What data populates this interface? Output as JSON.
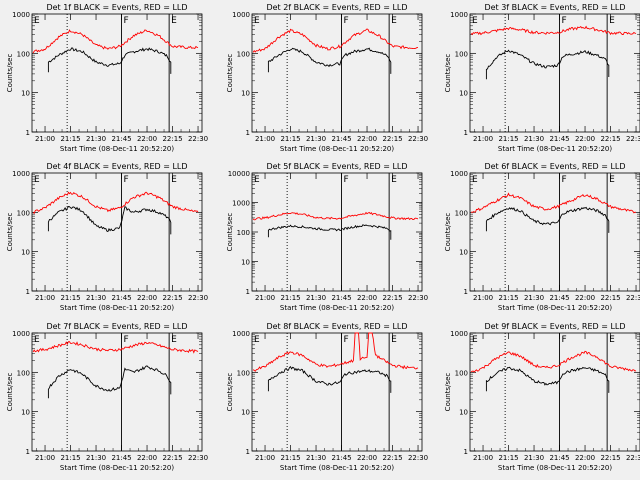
{
  "shared": {
    "ylabel": "Counts/sec",
    "xlabel": "Start Time (08-Dec-11 20:52:20)",
    "x_tick_labels": [
      "21:00",
      "21:15",
      "21:30",
      "21:45",
      "22:00",
      "22:15",
      "22:30"
    ],
    "y_tick_labels": [
      "1",
      "10",
      "100",
      "1000"
    ],
    "marker_labels": [
      "E",
      "F",
      "E"
    ],
    "colors": {
      "events": "#000000",
      "lld": "#ff0000",
      "background": "#f0f0f0"
    }
  },
  "chart_data": [
    {
      "type": "line",
      "title": "Det 1f BLACK = Events, RED = LLD",
      "ylim": [
        1,
        1000
      ],
      "y_scale": "log",
      "xlim": [
        "20:52:20",
        "22:32:20"
      ],
      "marker_times": [
        "21:13",
        "21:45",
        "22:13"
      ],
      "dotted_time": "21:13",
      "series": [
        {
          "name": "Events",
          "x": [
            "21:02",
            "21:08",
            "21:15",
            "21:22",
            "21:30",
            "21:37",
            "21:44",
            "21:47",
            "21:52",
            "22:00",
            "22:07",
            "22:12",
            "22:14"
          ],
          "values": [
            60,
            90,
            130,
            110,
            60,
            50,
            55,
            90,
            110,
            130,
            110,
            85,
            60
          ]
        },
        {
          "name": "LLD",
          "x": [
            "20:53",
            "21:00",
            "21:08",
            "21:15",
            "21:22",
            "21:30",
            "21:37",
            "21:44",
            "21:52",
            "22:00",
            "22:07",
            "22:15",
            "22:25",
            "22:30"
          ],
          "values": [
            110,
            130,
            260,
            380,
            300,
            160,
            130,
            150,
            280,
            390,
            280,
            150,
            140,
            140
          ]
        }
      ]
    },
    {
      "type": "line",
      "title": "Det 2f BLACK = Events, RED = LLD",
      "ylim": [
        1,
        1000
      ],
      "y_scale": "log",
      "xlim": [
        "20:52:20",
        "22:32:20"
      ],
      "marker_times": [
        "21:13",
        "21:45",
        "22:13"
      ],
      "dotted_time": "21:13",
      "series": [
        {
          "name": "Events",
          "x": [
            "21:02",
            "21:08",
            "21:15",
            "21:22",
            "21:30",
            "21:37",
            "21:44",
            "21:47",
            "21:52",
            "22:00",
            "22:07",
            "22:12",
            "22:14"
          ],
          "values": [
            60,
            90,
            130,
            110,
            60,
            50,
            55,
            90,
            110,
            130,
            110,
            85,
            60
          ]
        },
        {
          "name": "LLD",
          "x": [
            "20:53",
            "21:00",
            "21:08",
            "21:15",
            "21:22",
            "21:30",
            "21:37",
            "21:44",
            "21:52",
            "22:00",
            "22:07",
            "22:15",
            "22:25",
            "22:30"
          ],
          "values": [
            110,
            130,
            260,
            380,
            300,
            160,
            130,
            150,
            280,
            390,
            280,
            150,
            140,
            140
          ]
        }
      ]
    },
    {
      "type": "line",
      "title": "Det 3f BLACK = Events, RED = LLD",
      "ylim": [
        1,
        1000
      ],
      "y_scale": "log",
      "xlim": [
        "20:52:20",
        "22:32:20"
      ],
      "marker_times": [
        "21:13",
        "21:45",
        "22:13"
      ],
      "dotted_time": "21:13",
      "series": [
        {
          "name": "Events",
          "x": [
            "21:02",
            "21:08",
            "21:15",
            "21:22",
            "21:30",
            "21:37",
            "21:44",
            "21:47",
            "21:52",
            "22:00",
            "22:07",
            "22:12",
            "22:14"
          ],
          "values": [
            40,
            80,
            120,
            90,
            55,
            45,
            50,
            85,
            95,
            110,
            90,
            70,
            50
          ]
        },
        {
          "name": "LLD",
          "x": [
            "20:53",
            "21:00",
            "21:08",
            "21:15",
            "21:22",
            "21:30",
            "21:37",
            "21:44",
            "21:52",
            "22:00",
            "22:07",
            "22:15",
            "22:25",
            "22:30"
          ],
          "values": [
            310,
            330,
            380,
            430,
            400,
            340,
            330,
            340,
            420,
            460,
            400,
            330,
            320,
            320
          ]
        }
      ]
    },
    {
      "type": "line",
      "title": "Det 4f BLACK = Events, RED = LLD",
      "ylim": [
        1,
        1000
      ],
      "y_scale": "log",
      "xlim": [
        "20:52:20",
        "22:32:20"
      ],
      "marker_times": [
        "21:13",
        "21:45",
        "22:13"
      ],
      "dotted_time": "21:13",
      "series": [
        {
          "name": "Events",
          "x": [
            "21:02",
            "21:08",
            "21:15",
            "21:22",
            "21:30",
            "21:37",
            "21:44",
            "21:47",
            "21:52",
            "22:00",
            "22:07",
            "22:12",
            "22:14"
          ],
          "values": [
            60,
            100,
            140,
            110,
            45,
            35,
            40,
            130,
            100,
            120,
            100,
            75,
            55
          ]
        },
        {
          "name": "LLD",
          "x": [
            "20:53",
            "21:00",
            "21:08",
            "21:15",
            "21:22",
            "21:30",
            "21:37",
            "21:44",
            "21:52",
            "22:00",
            "22:07",
            "22:15",
            "22:25",
            "22:30"
          ],
          "values": [
            100,
            130,
            230,
            320,
            250,
            140,
            110,
            130,
            240,
            310,
            240,
            140,
            110,
            100
          ]
        }
      ]
    },
    {
      "type": "line",
      "title": "Det 5f BLACK = Events, RED = LLD",
      "ylim": [
        1,
        10000
      ],
      "y_scale": "log",
      "xlim": [
        "20:52:20",
        "22:32:20"
      ],
      "marker_times": [
        "21:13",
        "21:45",
        "22:13"
      ],
      "dotted_time": "21:13",
      "series": [
        {
          "name": "Events",
          "x": [
            "21:02",
            "21:08",
            "21:15",
            "21:22",
            "21:30",
            "21:37",
            "21:44",
            "21:47",
            "21:52",
            "22:00",
            "22:07",
            "22:12",
            "22:14"
          ],
          "values": [
            120,
            140,
            160,
            150,
            130,
            120,
            120,
            130,
            150,
            170,
            150,
            130,
            110
          ]
        },
        {
          "name": "LLD",
          "x": [
            "20:53",
            "21:00",
            "21:08",
            "21:15",
            "21:22",
            "21:30",
            "21:37",
            "21:44",
            "21:52",
            "22:00",
            "22:07",
            "22:15",
            "22:25",
            "22:30"
          ],
          "values": [
            280,
            300,
            380,
            450,
            400,
            310,
            290,
            290,
            360,
            440,
            380,
            300,
            280,
            280
          ]
        }
      ]
    },
    {
      "type": "line",
      "title": "Det 6f BLACK = Events, RED = LLD",
      "ylim": [
        1,
        1000
      ],
      "y_scale": "log",
      "xlim": [
        "20:52:20",
        "22:32:20"
      ],
      "marker_times": [
        "21:13",
        "21:45",
        "22:13"
      ],
      "dotted_time": "21:13",
      "series": [
        {
          "name": "Events",
          "x": [
            "21:02",
            "21:08",
            "21:15",
            "21:22",
            "21:30",
            "21:37",
            "21:44",
            "21:47",
            "21:52",
            "22:00",
            "22:07",
            "22:12",
            "22:14"
          ],
          "values": [
            60,
            95,
            130,
            110,
            60,
            50,
            55,
            95,
            110,
            130,
            110,
            85,
            60
          ]
        },
        {
          "name": "LLD",
          "x": [
            "20:53",
            "21:00",
            "21:08",
            "21:15",
            "21:22",
            "21:30",
            "21:37",
            "21:44",
            "21:52",
            "22:00",
            "22:07",
            "22:15",
            "22:25",
            "22:30"
          ],
          "values": [
            100,
            130,
            200,
            280,
            230,
            140,
            120,
            140,
            200,
            280,
            220,
            140,
            110,
            100
          ]
        }
      ]
    },
    {
      "type": "line",
      "title": "Det 7f BLACK = Events, RED = LLD",
      "ylim": [
        1,
        1000
      ],
      "y_scale": "log",
      "xlim": [
        "20:52:20",
        "22:32:20"
      ],
      "marker_times": [
        "21:13",
        "21:45",
        "22:13"
      ],
      "dotted_time": "21:13",
      "series": [
        {
          "name": "Events",
          "x": [
            "21:02",
            "21:08",
            "21:15",
            "21:22",
            "21:30",
            "21:37",
            "21:44",
            "21:47",
            "21:52",
            "22:00",
            "22:07",
            "22:12",
            "22:14"
          ],
          "values": [
            40,
            80,
            120,
            90,
            45,
            35,
            40,
            120,
            100,
            140,
            110,
            80,
            55
          ]
        },
        {
          "name": "LLD",
          "x": [
            "20:53",
            "21:00",
            "21:08",
            "21:15",
            "21:22",
            "21:30",
            "21:37",
            "21:44",
            "21:52",
            "22:00",
            "22:07",
            "22:15",
            "22:25",
            "22:30"
          ],
          "values": [
            350,
            380,
            480,
            580,
            500,
            390,
            360,
            380,
            480,
            570,
            480,
            380,
            350,
            340
          ]
        }
      ]
    },
    {
      "type": "line",
      "title": "Det 8f BLACK = Events, RED = LLD",
      "ylim": [
        1,
        1000
      ],
      "y_scale": "log",
      "xlim": [
        "20:52:20",
        "22:32:20"
      ],
      "marker_times": [
        "21:13",
        "21:45",
        "22:13"
      ],
      "dotted_time": "21:13",
      "series": [
        {
          "name": "Events",
          "x": [
            "21:02",
            "21:08",
            "21:15",
            "21:22",
            "21:30",
            "21:37",
            "21:44",
            "21:47",
            "21:52",
            "22:00",
            "22:07",
            "22:12",
            "22:14"
          ],
          "values": [
            60,
            95,
            130,
            110,
            60,
            50,
            55,
            90,
            100,
            110,
            100,
            80,
            60
          ]
        },
        {
          "name": "LLD",
          "x": [
            "20:53",
            "21:00",
            "21:08",
            "21:15",
            "21:22",
            "21:30",
            "21:37",
            "21:44",
            "21:52",
            "21:53",
            "21:55",
            "21:56",
            "22:00",
            "22:01",
            "22:03",
            "22:05",
            "22:07",
            "22:15",
            "22:25",
            "22:30"
          ],
          "values": [
            110,
            140,
            240,
            330,
            270,
            160,
            140,
            160,
            200,
            1000,
            1000,
            220,
            240,
            1000,
            1000,
            280,
            240,
            150,
            130,
            130
          ]
        }
      ]
    },
    {
      "type": "line",
      "title": "Det 9f BLACK = Events, RED = LLD",
      "ylim": [
        1,
        1000
      ],
      "y_scale": "log",
      "xlim": [
        "20:52:20",
        "22:32:20"
      ],
      "marker_times": [
        "21:13",
        "21:45",
        "22:13"
      ],
      "dotted_time": "21:13",
      "series": [
        {
          "name": "Events",
          "x": [
            "21:02",
            "21:08",
            "21:15",
            "21:22",
            "21:30",
            "21:37",
            "21:44",
            "21:47",
            "21:52",
            "22:00",
            "22:07",
            "22:12",
            "22:14"
          ],
          "values": [
            60,
            95,
            130,
            110,
            60,
            50,
            55,
            95,
            110,
            130,
            110,
            85,
            60
          ]
        },
        {
          "name": "LLD",
          "x": [
            "20:53",
            "21:00",
            "21:08",
            "21:15",
            "21:22",
            "21:30",
            "21:37",
            "21:44",
            "21:52",
            "22:00",
            "22:07",
            "22:15",
            "22:25",
            "22:30"
          ],
          "values": [
            100,
            130,
            230,
            320,
            260,
            150,
            130,
            150,
            240,
            320,
            250,
            140,
            120,
            110
          ]
        }
      ]
    }
  ]
}
